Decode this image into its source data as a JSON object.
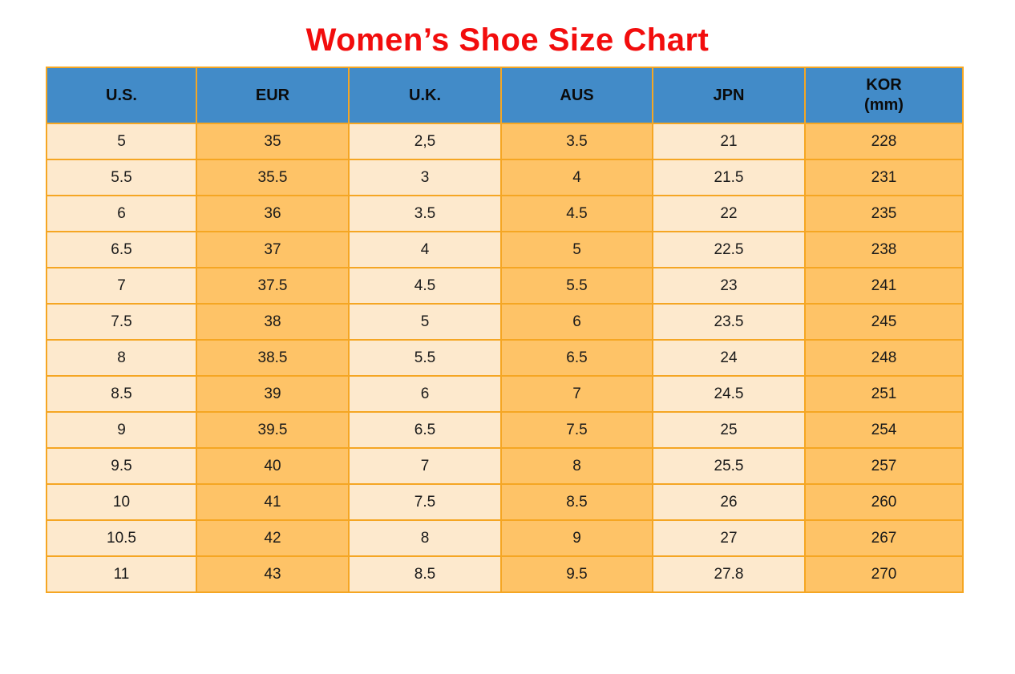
{
  "title": {
    "text": "Women’s Shoe Size Chart"
  },
  "colors": {
    "title_red": "#f20d0d",
    "header_blue": "#428bc8",
    "cell_cream": "#fde9cd",
    "cell_orange": "#fec367",
    "border_orange": "#f5a623",
    "text_dark": "#1a1a1a"
  },
  "chart_data": {
    "type": "table",
    "title": "Women’s Shoe Size Chart",
    "columns": [
      {
        "label": "U.S.",
        "sub": ""
      },
      {
        "label": "EUR",
        "sub": ""
      },
      {
        "label": "U.K.",
        "sub": ""
      },
      {
        "label": "AUS",
        "sub": ""
      },
      {
        "label": "JPN",
        "sub": ""
      },
      {
        "label": "KOR",
        "sub": "(mm)"
      }
    ],
    "rows": [
      [
        "5",
        "35",
        "2,5",
        "3.5",
        "21",
        "228"
      ],
      [
        "5.5",
        "35.5",
        "3",
        "4",
        "21.5",
        "231"
      ],
      [
        "6",
        "36",
        "3.5",
        "4.5",
        "22",
        "235"
      ],
      [
        "6.5",
        "37",
        "4",
        "5",
        "22.5",
        "238"
      ],
      [
        "7",
        "37.5",
        "4.5",
        "5.5",
        "23",
        "241"
      ],
      [
        "7.5",
        "38",
        "5",
        "6",
        "23.5",
        "245"
      ],
      [
        "8",
        "38.5",
        "5.5",
        "6.5",
        "24",
        "248"
      ],
      [
        "8.5",
        "39",
        "6",
        "7",
        "24.5",
        "251"
      ],
      [
        "9",
        "39.5",
        "6.5",
        "7.5",
        "25",
        "254"
      ],
      [
        "9.5",
        "40",
        "7",
        "8",
        "25.5",
        "257"
      ],
      [
        "10",
        "41",
        "7.5",
        "8.5",
        "26",
        "260"
      ],
      [
        "10.5",
        "42",
        "8",
        "9",
        "27",
        "267"
      ],
      [
        "11",
        "43",
        "8.5",
        "9.5",
        "27.8",
        "270"
      ]
    ]
  }
}
